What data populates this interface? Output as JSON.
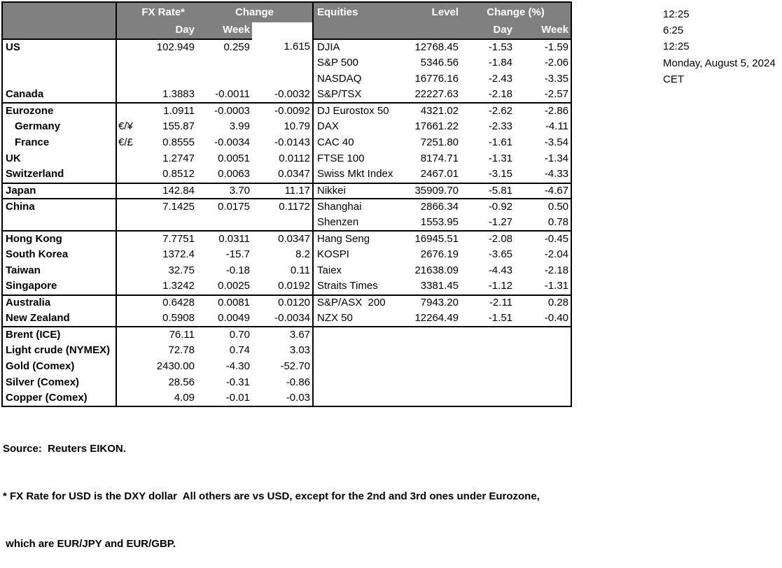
{
  "clock_panel": {
    "lines": [
      "12:25",
      "6:25",
      "12:25",
      "Monday, August 5, 2024",
      "CET"
    ]
  },
  "fx_table": {
    "header": {
      "fx_rate": "FX Rate*",
      "change": "Change",
      "day": "Day",
      "week": "Week"
    }
  },
  "eq_table": {
    "header": {
      "title": "Equities",
      "level": "Level",
      "change": "Change (%)",
      "day": "Day",
      "week": "Week"
    }
  },
  "rows": [
    {
      "fx": {
        "name": "US",
        "pair": "",
        "rate": "102.949",
        "day": "0.259",
        "week": "1.615"
      },
      "eq": {
        "name": "DJIA",
        "level": "12768.45",
        "day": "-1.53",
        "week": "-1.59"
      }
    },
    {
      "fx": {
        "name": "",
        "pair": "",
        "rate": "",
        "day": "",
        "week": ""
      },
      "eq": {
        "name": "S&P 500",
        "level": "5346.56",
        "day": "-1.84",
        "week": "-2.06"
      }
    },
    {
      "fx": {
        "name": "",
        "pair": "",
        "rate": "",
        "day": "",
        "week": ""
      },
      "eq": {
        "name": "NASDAQ",
        "level": "16776.16",
        "day": "-2.43",
        "week": "-3.35"
      }
    },
    {
      "fx": {
        "name": "Canada",
        "pair": "",
        "rate": "1.3883",
        "day": "-0.0011",
        "week": "-0.0032"
      },
      "eq": {
        "name": "S&P/TSX",
        "level": "22227.63",
        "day": "-2.18",
        "week": "-2.57"
      },
      "group_end": true
    },
    {
      "fx": {
        "name": "Eurozone",
        "pair": "",
        "rate": "1.0911",
        "day": "-0.0003",
        "week": "-0.0092"
      },
      "eq": {
        "name": "DJ Eurostox 50",
        "level": "4321.02",
        "day": "-2.62",
        "week": "-2.86"
      }
    },
    {
      "fx": {
        "name": "Germany",
        "pair": "€/¥",
        "rate": "155.87",
        "day": "3.99",
        "week": "10.79",
        "indent": true
      },
      "eq": {
        "name": "DAX",
        "level": "17661.22",
        "day": "-2.33",
        "week": "-4.11"
      }
    },
    {
      "fx": {
        "name": "France",
        "pair": "€/£",
        "rate": "0.8555",
        "day": "-0.0034",
        "week": "-0.0143",
        "indent": true
      },
      "eq": {
        "name": "CAC 40",
        "level": "7251.80",
        "day": "-1.61",
        "week": "-3.54"
      }
    },
    {
      "fx": {
        "name": "UK",
        "pair": "",
        "rate": "1.2747",
        "day": "0.0051",
        "week": "0.0112"
      },
      "eq": {
        "name": "FTSE 100",
        "level": "8174.71",
        "day": "-1.31",
        "week": "-1.34"
      }
    },
    {
      "fx": {
        "name": "Switzerland",
        "pair": "",
        "rate": "0.8512",
        "day": "0.0063",
        "week": "0.0347"
      },
      "eq": {
        "name": "Swiss Mkt Index",
        "level": "2467.01",
        "day": "-3.15",
        "week": "-4.33"
      },
      "group_end": true
    },
    {
      "fx": {
        "name": "Japan",
        "pair": "",
        "rate": "142.84",
        "day": "3.70",
        "week": "11.17"
      },
      "eq": {
        "name": "Nikkei",
        "level": "35909.70",
        "day": "-5.81",
        "week": "-4.67"
      },
      "group_end": true
    },
    {
      "fx": {
        "name": "China",
        "pair": "",
        "rate": "7.1425",
        "day": "0.0175",
        "week": "0.1172"
      },
      "eq": {
        "name": "Shanghai",
        "level": "2866.34",
        "day": "-0.92",
        "week": "0.50"
      }
    },
    {
      "fx": {
        "name": "",
        "pair": "",
        "rate": "",
        "day": "",
        "week": ""
      },
      "eq": {
        "name": "Shenzen",
        "level": "1553.95",
        "day": "-1.27",
        "week": "0.78"
      },
      "group_end": true
    },
    {
      "fx": {
        "name": "Hong Kong",
        "pair": "",
        "rate": "7.7751",
        "day": "0.0311",
        "week": "0.0347"
      },
      "eq": {
        "name": "Hang Seng",
        "level": "16945.51",
        "day": "-2.08",
        "week": "-0.45"
      }
    },
    {
      "fx": {
        "name": "South Korea",
        "pair": "",
        "rate": "1372.4",
        "day": "-15.7",
        "week": "8.2"
      },
      "eq": {
        "name": "KOSPI",
        "level": "2676.19",
        "day": "-3.65",
        "week": "-2.04"
      }
    },
    {
      "fx": {
        "name": "Taiwan",
        "pair": "",
        "rate": "32.75",
        "day": "-0.18",
        "week": "0.11"
      },
      "eq": {
        "name": "Taiex",
        "level": "21638.09",
        "day": "-4.43",
        "week": "-2.18"
      }
    },
    {
      "fx": {
        "name": "Singapore",
        "pair": "",
        "rate": "1.3242",
        "day": "0.0025",
        "week": "0.0192"
      },
      "eq": {
        "name": "Straits Times",
        "level": "3381.45",
        "day": "-1.12",
        "week": "-1.31"
      },
      "group_end": true
    },
    {
      "fx": {
        "name": "Australia",
        "pair": "",
        "rate": "0.6428",
        "day": "0.0081",
        "week": "0.0120"
      },
      "eq": {
        "name": "S&P/ASX  200",
        "level": "7943.20",
        "day": "-2.11",
        "week": "0.28"
      }
    },
    {
      "fx": {
        "name": "New Zealand",
        "pair": "",
        "rate": "0.5908",
        "day": "0.0049",
        "week": "-0.0034"
      },
      "eq": {
        "name": "NZX 50",
        "level": "12264.49",
        "day": "-1.51",
        "week": "-0.40"
      },
      "group_end": true
    },
    {
      "fx": {
        "name": "Brent (ICE)",
        "pair": "",
        "rate": "76.11",
        "day": "0.70",
        "week": "3.67"
      },
      "eq": {
        "name": "",
        "level": "",
        "day": "",
        "week": ""
      }
    },
    {
      "fx": {
        "name": "Light crude (NYMEX)",
        "pair": "",
        "rate": "72.78",
        "day": "0.74",
        "week": "3.03"
      },
      "eq": {
        "name": "",
        "level": "",
        "day": "",
        "week": ""
      }
    },
    {
      "fx": {
        "name": "Gold (Comex)",
        "pair": "",
        "rate": "2430.00",
        "day": "-4.30",
        "week": "-52.70"
      },
      "eq": {
        "name": "",
        "level": "",
        "day": "",
        "week": ""
      }
    },
    {
      "fx": {
        "name": "Silver (Comex)",
        "pair": "",
        "rate": "28.56",
        "day": "-0.31",
        "week": "-0.86"
      },
      "eq": {
        "name": "",
        "level": "",
        "day": "",
        "week": ""
      }
    },
    {
      "fx": {
        "name": "Copper (Comex)",
        "pair": "",
        "rate": "4.09",
        "day": "-0.01",
        "week": "-0.03"
      },
      "eq": {
        "name": "",
        "level": "",
        "day": "",
        "week": ""
      }
    }
  ],
  "footer": {
    "source": "Source:  Reuters EIKON.",
    "note1": "* FX Rate for USD is the DXY dollar  All others are vs USD, except for the 2nd and 3rd ones under Eurozone,",
    "note2": " which are EUR/JPY and EUR/GBP."
  },
  "colors": {
    "header_bg": "#808080",
    "header_text": "#ffffff",
    "border": "#000000",
    "background": "#ffffff"
  }
}
